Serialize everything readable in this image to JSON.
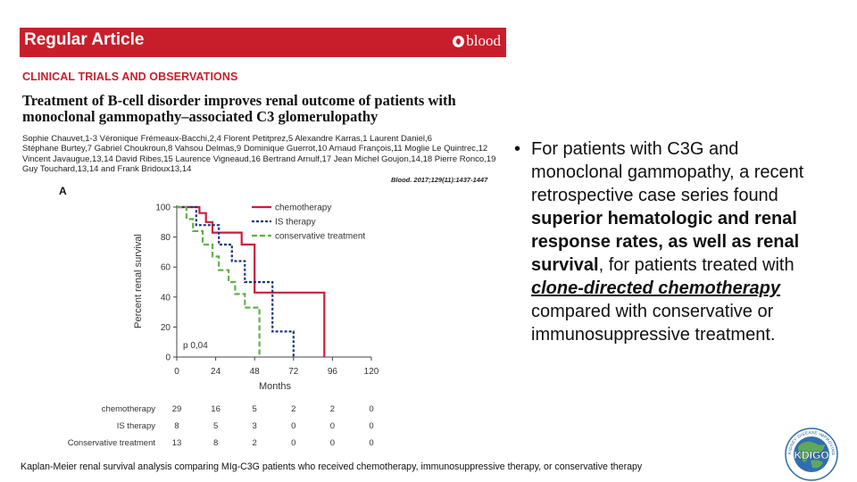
{
  "header": {
    "banner_title": "Regular Article",
    "banner_logo": "blood",
    "section_label": "CLINICAL TRIALS AND OBSERVATIONS",
    "article_title_line1": "Treatment of B-cell disorder improves renal outcome of patients with",
    "article_title_line2": "monoclonal gammopathy–associated C3 glomerulopathy",
    "authors_line1": "Sophie Chauvet,1-3 Véronique Frémeaux-Bacchi,2,4 Florent Petitprez,5 Alexandre Karras,1 Laurent Daniel,6",
    "authors_line2": "Stéphane Burtey,7 Gabriel Choukroun,8 Vahsou Delmas,9 Dominique Guerrot,10 Arnaud François,11 Moglie Le Quintrec,12",
    "authors_line3": "Vincent Javaugue,13,14 David Ribes,15 Laurence Vigneaud,16 Bertrand Arnulf,17 Jean Michel Goujon,14,18 Pierre Ronco,19",
    "authors_line4": "Guy Touchard,13,14 and Frank Bridoux13,14",
    "citation": "Blood. 2017;129(11):1437-1447",
    "panel_letter": "A"
  },
  "chart_data": {
    "type": "line",
    "subtype": "kaplan-meier step",
    "xlabel": "Months",
    "ylabel": "Percent renal survival",
    "x_ticks": [
      0,
      24,
      48,
      72,
      96,
      120
    ],
    "y_ticks": [
      0,
      20,
      40,
      60,
      80,
      100
    ],
    "xlim": [
      0,
      120
    ],
    "ylim": [
      0,
      100
    ],
    "annotation": "p 0,04",
    "legend_position": "top-right",
    "series": [
      {
        "name": "chemotherapy",
        "color": "#c81e3c",
        "dash": "solid",
        "steps": [
          [
            0,
            100
          ],
          [
            14,
            100
          ],
          [
            14,
            96
          ],
          [
            18,
            96
          ],
          [
            18,
            90
          ],
          [
            22,
            90
          ],
          [
            22,
            83
          ],
          [
            40,
            83
          ],
          [
            40,
            75
          ],
          [
            48,
            75
          ],
          [
            48,
            43
          ],
          [
            91,
            43
          ],
          [
            91,
            0
          ]
        ]
      },
      {
        "name": "IS therapy",
        "color": "#1f3a7a",
        "dash": "dotted",
        "steps": [
          [
            0,
            100
          ],
          [
            12,
            100
          ],
          [
            12,
            88
          ],
          [
            26,
            88
          ],
          [
            26,
            75
          ],
          [
            34,
            75
          ],
          [
            34,
            64
          ],
          [
            42,
            64
          ],
          [
            42,
            50
          ],
          [
            59,
            50
          ],
          [
            59,
            17
          ],
          [
            72,
            17
          ],
          [
            72,
            0
          ]
        ]
      },
      {
        "name": "conservative treatment",
        "color": "#5fb14a",
        "dash": "dashed",
        "steps": [
          [
            0,
            100
          ],
          [
            6,
            100
          ],
          [
            6,
            92
          ],
          [
            10,
            92
          ],
          [
            10,
            84
          ],
          [
            16,
            84
          ],
          [
            16,
            75
          ],
          [
            22,
            75
          ],
          [
            22,
            67
          ],
          [
            26,
            67
          ],
          [
            26,
            58
          ],
          [
            32,
            58
          ],
          [
            32,
            50
          ],
          [
            36,
            50
          ],
          [
            36,
            42
          ],
          [
            42,
            42
          ],
          [
            42,
            33
          ],
          [
            51,
            33
          ],
          [
            51,
            0
          ]
        ]
      }
    ],
    "risk_table": {
      "times": [
        0,
        24,
        48,
        72,
        96,
        120
      ],
      "rows": [
        {
          "label": "chemotherapy",
          "values": [
            "29",
            "16",
            "5",
            "2",
            "2",
            "0"
          ]
        },
        {
          "label": "IS therapy",
          "values": [
            "8",
            "5",
            "3",
            "0",
            "0",
            "0"
          ]
        },
        {
          "label": "Conservative treatment",
          "values": [
            "13",
            "8",
            "2",
            "0",
            "0",
            "0"
          ]
        }
      ]
    }
  },
  "bullet": {
    "marker": "•",
    "text_1": "For patients with C3G and monoclonal gammopathy, a recent retrospective case series found ",
    "bold_1": "superior hematologic and renal response rates, as well as renal survival",
    "text_2": ", for patients treated with ",
    "bold_2": "clone-directed chemotherapy",
    "text_3": " compared with conservative or immunosuppressive treatment."
  },
  "caption": "Kaplan-Meier renal survival analysis comparing MIg-C3G patients who received chemotherapy, immunosuppressive therapy, or conservative therapy",
  "logo": {
    "icon": "kdigo-logo",
    "text": "KDIGO",
    "ring_text": "KIDNEY DISEASE IMPROVING GLOBAL OUTCOMES"
  }
}
